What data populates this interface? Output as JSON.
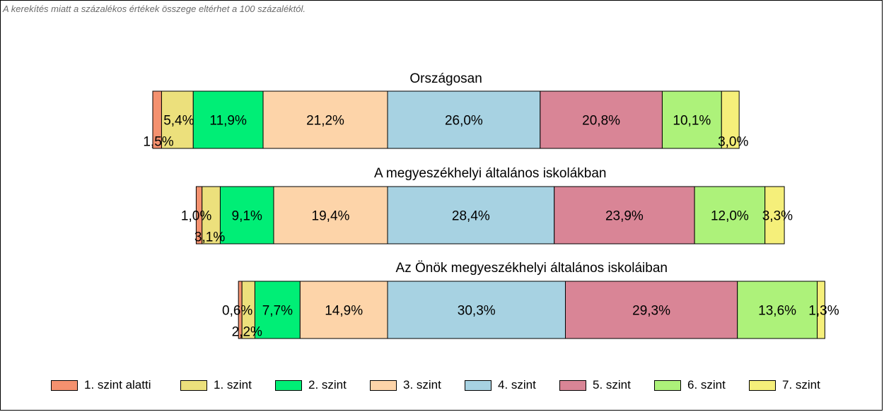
{
  "note": "A kerekítés miatt a  százalékos értékek összege eltérhet a 100 százaléktól.",
  "chart_data": {
    "type": "bar",
    "orientation": "horizontal-stacked-100",
    "categories": [
      "Országosan",
      "A megyeszékhelyi általános iskolákban",
      "Az Önök megyeszékhelyi általános iskoláiban"
    ],
    "series": [
      {
        "name": "1. szint alatti",
        "color": "#f4916f",
        "values": [
          1.5,
          1.0,
          0.6
        ],
        "labels": [
          "1,5%",
          "1,0%",
          "0,6%"
        ]
      },
      {
        "name": "1. szint",
        "color": "#ece07c",
        "values": [
          5.4,
          3.1,
          2.2
        ],
        "labels": [
          "5,4%",
          "3,1%",
          "2,2%"
        ]
      },
      {
        "name": "2. szint",
        "color": "#00ee76",
        "values": [
          11.9,
          9.1,
          7.7
        ],
        "labels": [
          "11,9%",
          "9,1%",
          "7,7%"
        ]
      },
      {
        "name": "3. szint",
        "color": "#fdd4a9",
        "values": [
          21.2,
          19.4,
          14.9
        ],
        "labels": [
          "21,2%",
          "19,4%",
          "14,9%"
        ]
      },
      {
        "name": "4. szint",
        "color": "#a7d2e2",
        "values": [
          26.0,
          28.4,
          30.3
        ],
        "labels": [
          "26,0%",
          "28,4%",
          "30,3%"
        ]
      },
      {
        "name": "5. szint",
        "color": "#d98596",
        "values": [
          20.8,
          23.9,
          29.3
        ],
        "labels": [
          "20,8%",
          "23,9%",
          "29,3%"
        ]
      },
      {
        "name": "6. szint",
        "color": "#adf27a",
        "values": [
          10.1,
          12.0,
          13.6
        ],
        "labels": [
          "10,1%",
          "12,0%",
          "13,6%"
        ]
      },
      {
        "name": "7. szint",
        "color": "#f5ef7a",
        "values": [
          3.0,
          3.3,
          1.3
        ],
        "labels": [
          "3,0%",
          "3,3%",
          "1,3%"
        ]
      }
    ],
    "alignment": "aligned at the boundary between 3. szint and 4. szint",
    "legend_position": "bottom"
  }
}
